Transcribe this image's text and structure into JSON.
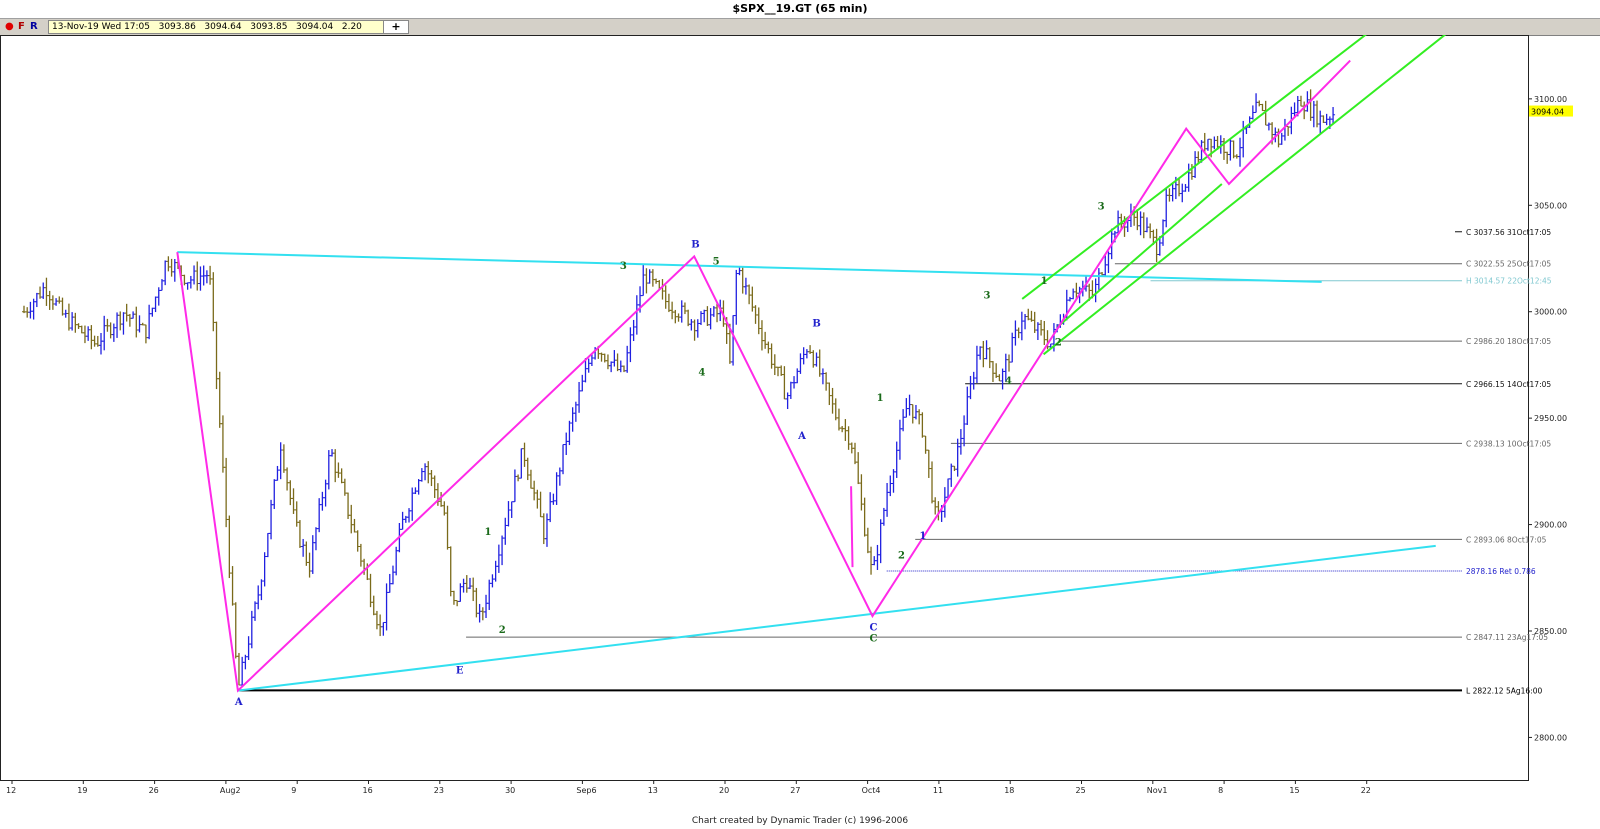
{
  "window": {
    "title": "$SPX__19.GT (65 min)"
  },
  "toolbar": {
    "dot_icon": "red-dot-icon",
    "f_label": "F",
    "r_label": "R",
    "quote": {
      "date": "13-Nov-19 Wed 17:05",
      "open": "3093.86",
      "high": "3094.64",
      "low": "3093.85",
      "close": "3094.04",
      "change": "2.20"
    },
    "add_label": "+"
  },
  "footer": {
    "credit": "Chart created by Dynamic Trader  (c) 1996-2006"
  },
  "colors": {
    "up_bar": "#2020e0",
    "down_bar": "#7a6a1a",
    "cyan_line": "#33e0f0",
    "magenta_line": "#ff2ae8",
    "green_line": "#33ee22",
    "wave_blue": "#2222cc",
    "wave_green": "#1a6a1a",
    "last_price_bg": "#ffff00"
  },
  "chart_data": {
    "type": "ohlc",
    "timeframe": "65 min",
    "ylim": [
      2780,
      3130
    ],
    "y_ticks": [
      {
        "value": 2800,
        "label": "2800.00"
      },
      {
        "value": 2850,
        "label": "2850.00"
      },
      {
        "value": 2900,
        "label": "2900.00"
      },
      {
        "value": 2950,
        "label": "2950.00"
      },
      {
        "value": 3000,
        "label": "3000.00"
      },
      {
        "value": 3050,
        "label": "3050.00"
      },
      {
        "value": 3100,
        "label": "3100.00"
      }
    ],
    "x_ticks": [
      "12",
      "19",
      "26",
      "Aug2",
      "9",
      "16",
      "23",
      "30",
      "Sep6",
      "13",
      "20",
      "27",
      "Oct4",
      "11",
      "18",
      "25",
      "Nov1",
      "8",
      "15",
      "22"
    ],
    "last_price": {
      "value": 3094.04,
      "label": "3094.04"
    },
    "price_series": [
      {
        "t": 0,
        "v": 3000
      },
      {
        "t": 0.3,
        "v": 3012
      },
      {
        "t": 0.55,
        "v": 2998
      },
      {
        "t": 1,
        "v": 2985
      },
      {
        "t": 1.4,
        "v": 3000
      },
      {
        "t": 1.7,
        "v": 2990
      },
      {
        "t": 2,
        "v": 3025
      },
      {
        "t": 2.3,
        "v": 3015
      },
      {
        "t": 2.6,
        "v": 3018
      },
      {
        "t": 3,
        "v": 2822
      },
      {
        "t": 3.3,
        "v": 2870
      },
      {
        "t": 3.6,
        "v": 2938
      },
      {
        "t": 3.8,
        "v": 2900
      },
      {
        "t": 4,
        "v": 2880
      },
      {
        "t": 4.3,
        "v": 2935
      },
      {
        "t": 4.6,
        "v": 2900
      },
      {
        "t": 5,
        "v": 2850
      },
      {
        "t": 5.3,
        "v": 2900
      },
      {
        "t": 5.6,
        "v": 2930
      },
      {
        "t": 5.9,
        "v": 2905
      },
      {
        "t": 6,
        "v": 2860
      },
      {
        "t": 6.2,
        "v": 2875
      },
      {
        "t": 6.4,
        "v": 2855
      },
      {
        "t": 6.7,
        "v": 2895
      },
      {
        "t": 7,
        "v": 2935
      },
      {
        "t": 7.3,
        "v": 2895
      },
      {
        "t": 7.6,
        "v": 2940
      },
      {
        "t": 8,
        "v": 2985
      },
      {
        "t": 8.4,
        "v": 2970
      },
      {
        "t": 8.7,
        "v": 3018
      },
      {
        "t": 9,
        "v": 3005
      },
      {
        "t": 9.4,
        "v": 2995
      },
      {
        "t": 9.8,
        "v": 3000
      },
      {
        "t": 9.9,
        "v": 2975
      },
      {
        "t": 10,
        "v": 3022
      },
      {
        "t": 10.4,
        "v": 2985
      },
      {
        "t": 10.7,
        "v": 2960
      },
      {
        "t": 11,
        "v": 2985
      },
      {
        "t": 11.4,
        "v": 2950
      },
      {
        "t": 11.6,
        "v": 2940
      },
      {
        "t": 11.9,
        "v": 2875
      },
      {
        "t": 12.1,
        "v": 2915
      },
      {
        "t": 12.4,
        "v": 2958
      },
      {
        "t": 12.6,
        "v": 2945
      },
      {
        "t": 12.8,
        "v": 2900
      },
      {
        "t": 13.1,
        "v": 2935
      },
      {
        "t": 13.4,
        "v": 2985
      },
      {
        "t": 13.7,
        "v": 2968
      },
      {
        "t": 14,
        "v": 2998
      },
      {
        "t": 14.4,
        "v": 2985
      },
      {
        "t": 14.7,
        "v": 3012
      },
      {
        "t": 15,
        "v": 3008
      },
      {
        "t": 15.3,
        "v": 3040
      },
      {
        "t": 15.6,
        "v": 3045
      },
      {
        "t": 15.9,
        "v": 3030
      },
      {
        "t": 16,
        "v": 3050
      },
      {
        "t": 16.3,
        "v": 3062
      },
      {
        "t": 16.6,
        "v": 3082
      },
      {
        "t": 17,
        "v": 3075
      },
      {
        "t": 17.3,
        "v": 3096
      },
      {
        "t": 17.6,
        "v": 3080
      },
      {
        "t": 17.9,
        "v": 3100
      },
      {
        "t": 18.2,
        "v": 3090
      },
      {
        "t": 18.4,
        "v": 3094
      }
    ],
    "price_levels": [
      {
        "value": 3037.56,
        "label": "C  3037.56  31Oct17:05",
        "style": "tick",
        "color": "#111111"
      },
      {
        "value": 3022.55,
        "label": "C  3022.55  25Oct17:05",
        "style": "line",
        "x_start": 15.3,
        "color": "#666666"
      },
      {
        "value": 3014.57,
        "label": "H  3014.57  22Oct12:45",
        "style": "line",
        "x_start": 15.8,
        "color": "#80c8d0"
      },
      {
        "value": 2986.2,
        "label": "C  2986.20  18Oct17:05",
        "style": "line",
        "x_start": 14.5,
        "color": "#666666"
      },
      {
        "value": 2966.15,
        "label": "C  2966.15  14Oct17:05",
        "style": "line",
        "x_start": 13.2,
        "color": "#111111"
      },
      {
        "value": 2938.13,
        "label": "C  2938.13  10Oct17:05",
        "style": "line",
        "x_start": 13.0,
        "color": "#666666"
      },
      {
        "value": 2893.06,
        "label": "C  2893.06  8Oct17:05",
        "style": "line",
        "x_start": 12.5,
        "color": "#666666"
      },
      {
        "value": 2878.16,
        "label": "2878.16  Ret 0.786",
        "style": "dotted",
        "x_start": 12.1,
        "color": "#2222cc"
      },
      {
        "value": 2847.11,
        "label": "C  2847.11  23Ag17:05",
        "style": "line",
        "x_start": 6.2,
        "color": "#666666"
      },
      {
        "value": 2822.12,
        "label": "L  2822.12  5Ag16:00",
        "style": "thick",
        "x_start": 3.0,
        "color": "#000000"
      }
    ],
    "trend_lines": [
      {
        "color": "cyan",
        "points": [
          [
            2.15,
            3028
          ],
          [
            18.2,
            3014
          ]
        ]
      },
      {
        "color": "cyan",
        "points": [
          [
            3.0,
            2822
          ],
          [
            19.8,
            2890
          ]
        ]
      },
      {
        "color": "green",
        "points": [
          [
            14.0,
            3006
          ],
          [
            19.2,
            3140
          ]
        ]
      },
      {
        "color": "green",
        "points": [
          [
            14.3,
            2980
          ],
          [
            20.3,
            3140
          ]
        ]
      },
      {
        "color": "green",
        "points": [
          [
            14.5,
            2993
          ],
          [
            16.8,
            3060
          ]
        ]
      }
    ],
    "zigzag": [
      [
        2.15,
        3028
      ],
      [
        3.0,
        2822
      ],
      [
        9.4,
        3026
      ],
      [
        11.9,
        2857
      ],
      [
        16.3,
        3086
      ],
      [
        16.9,
        3060
      ],
      [
        18.6,
        3118
      ]
    ],
    "zigzag_extra": [
      [
        11.6,
        2918
      ],
      [
        11.62,
        2880
      ]
    ],
    "wave_labels": [
      {
        "t": 3.0,
        "v": 2817,
        "text": "A",
        "color": "blue"
      },
      {
        "t": 9.4,
        "v": 3032,
        "text": "B",
        "color": "blue"
      },
      {
        "t": 11.1,
        "v": 2995,
        "text": "B",
        "color": "blue"
      },
      {
        "t": 10.9,
        "v": 2942,
        "text": "A",
        "color": "blue"
      },
      {
        "t": 11.9,
        "v": 2852,
        "text": "C",
        "color": "blue"
      },
      {
        "t": 11.9,
        "v": 2847,
        "text": "C",
        "color": "green"
      },
      {
        "t": 6.1,
        "v": 2832,
        "text": "E",
        "color": "blue"
      },
      {
        "t": 12.6,
        "v": 2895,
        "text": "1",
        "color": "blue"
      },
      {
        "t": 8.4,
        "v": 3022,
        "text": "3",
        "color": "green"
      },
      {
        "t": 9.7,
        "v": 3024,
        "text": "5",
        "color": "green"
      },
      {
        "t": 9.5,
        "v": 2972,
        "text": "4",
        "color": "green"
      },
      {
        "t": 6.5,
        "v": 2897,
        "text": "1",
        "color": "green"
      },
      {
        "t": 6.7,
        "v": 2851,
        "text": "2",
        "color": "green"
      },
      {
        "t": 12.0,
        "v": 2960,
        "text": "1",
        "color": "green"
      },
      {
        "t": 12.3,
        "v": 2886,
        "text": "2",
        "color": "green"
      },
      {
        "t": 13.5,
        "v": 3008,
        "text": "3",
        "color": "green"
      },
      {
        "t": 13.8,
        "v": 2968,
        "text": "4",
        "color": "green"
      },
      {
        "t": 14.3,
        "v": 3015,
        "text": "1",
        "color": "green"
      },
      {
        "t": 14.5,
        "v": 2986,
        "text": "2",
        "color": "green"
      },
      {
        "t": 15.1,
        "v": 3050,
        "text": "3",
        "color": "green"
      }
    ]
  }
}
